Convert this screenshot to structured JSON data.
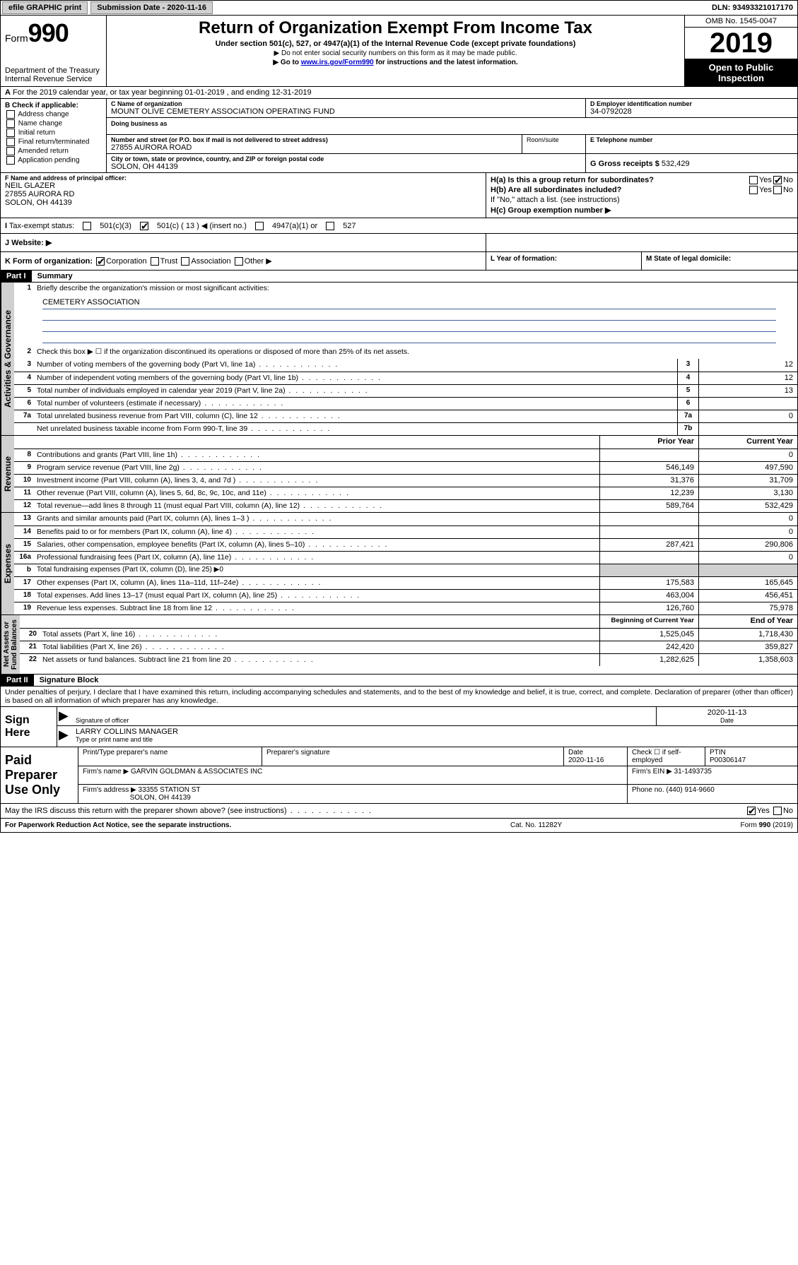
{
  "topbar": {
    "efile_btn": "efile GRAPHIC print",
    "submission_label": "Submission Date - 2020-11-16",
    "dln": "DLN: 93493321017170"
  },
  "header": {
    "form_label": "Form",
    "form_number": "990",
    "dept": "Department of the Treasury",
    "irs": "Internal Revenue Service",
    "title": "Return of Organization Exempt From Income Tax",
    "subtitle": "Under section 501(c), 527, or 4947(a)(1) of the Internal Revenue Code (except private foundations)",
    "note1": "▶ Do not enter social security numbers on this form as it may be made public.",
    "note2_pre": "▶ Go to ",
    "note2_link": "www.irs.gov/Form990",
    "note2_post": " for instructions and the latest information.",
    "omb": "OMB No. 1545-0047",
    "year": "2019",
    "open": "Open to Public Inspection"
  },
  "row_a": "For the 2019 calendar year, or tax year beginning 01-01-2019   , and ending 12-31-2019",
  "col_b": {
    "title": "B Check if applicable:",
    "items": [
      "Address change",
      "Name change",
      "Initial return",
      "Final return/terminated",
      "Amended return",
      "Application pending"
    ]
  },
  "col_c": {
    "name_lbl": "C Name of organization",
    "name": "MOUNT OLIVE CEMETERY ASSOCIATION OPERATING FUND",
    "dba_lbl": "Doing business as",
    "addr_lbl": "Number and street (or P.O. box if mail is not delivered to street address)",
    "addr": "27855 AURORA ROAD",
    "room_lbl": "Room/suite",
    "city_lbl": "City or town, state or province, country, and ZIP or foreign postal code",
    "city": "SOLON, OH  44139"
  },
  "col_d": {
    "ein_lbl": "D Employer identification number",
    "ein": "34-0792028"
  },
  "col_e": {
    "tel_lbl": "E Telephone number"
  },
  "col_g": {
    "gross_lbl": "G Gross receipts $",
    "gross": "532,429"
  },
  "col_f": {
    "lbl": "F  Name and address of principal officer:",
    "name": "NEIL GLAZER",
    "addr1": "27855 AURORA RD",
    "addr2": "SOLON, OH  44139"
  },
  "col_h": {
    "ha": "H(a)  Is this a group return for subordinates?",
    "hb": "H(b)  Are all subordinates included?",
    "hb_note": "If \"No,\" attach a list. (see instructions)",
    "hc": "H(c)  Group exemption number ▶",
    "yes": "Yes",
    "no": "No"
  },
  "tax_status": {
    "lbl": "Tax-exempt status:",
    "c3": "501(c)(3)",
    "c": "501(c) ( 13 ) ◀ (insert no.)",
    "a1": "4947(a)(1) or",
    "s527": "527"
  },
  "website_lbl": "J   Website: ▶",
  "row_k": "K Form of organization:",
  "k_opts": [
    "Corporation",
    "Trust",
    "Association",
    "Other ▶"
  ],
  "row_l": "L Year of formation:",
  "row_m": "M State of legal domicile:",
  "part1": {
    "hdr": "Part I",
    "title": "Summary",
    "q1": "Briefly describe the organization's mission or most significant activities:",
    "mission": "CEMETERY ASSOCIATION",
    "q2": "Check this box ▶ ☐  if the organization discontinued its operations or disposed of more than 25% of its net assets.",
    "lines_gov": [
      {
        "n": "3",
        "d": "Number of voting members of the governing body (Part VI, line 1a)",
        "box": "3",
        "v": "12"
      },
      {
        "n": "4",
        "d": "Number of independent voting members of the governing body (Part VI, line 1b)",
        "box": "4",
        "v": "12"
      },
      {
        "n": "5",
        "d": "Total number of individuals employed in calendar year 2019 (Part V, line 2a)",
        "box": "5",
        "v": "13"
      },
      {
        "n": "6",
        "d": "Total number of volunteers (estimate if necessary)",
        "box": "6",
        "v": ""
      },
      {
        "n": "7a",
        "d": "Total unrelated business revenue from Part VIII, column (C), line 12",
        "box": "7a",
        "v": "0"
      },
      {
        "n": "",
        "d": "Net unrelated business taxable income from Form 990-T, line 39",
        "box": "7b",
        "v": ""
      }
    ],
    "prior": "Prior Year",
    "current": "Current Year",
    "rev": [
      {
        "n": "8",
        "d": "Contributions and grants (Part VIII, line 1h)",
        "p": "",
        "c": "0"
      },
      {
        "n": "9",
        "d": "Program service revenue (Part VIII, line 2g)",
        "p": "546,149",
        "c": "497,590"
      },
      {
        "n": "10",
        "d": "Investment income (Part VIII, column (A), lines 3, 4, and 7d )",
        "p": "31,376",
        "c": "31,709"
      },
      {
        "n": "11",
        "d": "Other revenue (Part VIII, column (A), lines 5, 6d, 8c, 9c, 10c, and 11e)",
        "p": "12,239",
        "c": "3,130"
      },
      {
        "n": "12",
        "d": "Total revenue—add lines 8 through 11 (must equal Part VIII, column (A), line 12)",
        "p": "589,764",
        "c": "532,429"
      }
    ],
    "exp": [
      {
        "n": "13",
        "d": "Grants and similar amounts paid (Part IX, column (A), lines 1–3 )",
        "p": "",
        "c": "0"
      },
      {
        "n": "14",
        "d": "Benefits paid to or for members (Part IX, column (A), line 4)",
        "p": "",
        "c": "0"
      },
      {
        "n": "15",
        "d": "Salaries, other compensation, employee benefits (Part IX, column (A), lines 5–10)",
        "p": "287,421",
        "c": "290,806"
      },
      {
        "n": "16a",
        "d": "Professional fundraising fees (Part IX, column (A), line 11e)",
        "p": "",
        "c": "0"
      },
      {
        "n": "b",
        "d": "Total fundraising expenses (Part IX, column (D), line 25) ▶0",
        "p": null,
        "c": null
      },
      {
        "n": "17",
        "d": "Other expenses (Part IX, column (A), lines 11a–11d, 11f–24e)",
        "p": "175,583",
        "c": "165,645"
      },
      {
        "n": "18",
        "d": "Total expenses. Add lines 13–17 (must equal Part IX, column (A), line 25)",
        "p": "463,004",
        "c": "456,451"
      },
      {
        "n": "19",
        "d": "Revenue less expenses. Subtract line 18 from line 12",
        "p": "126,760",
        "c": "75,978"
      }
    ],
    "begin": "Beginning of Current Year",
    "end": "End of Year",
    "net": [
      {
        "n": "20",
        "d": "Total assets (Part X, line 16)",
        "p": "1,525,045",
        "c": "1,718,430"
      },
      {
        "n": "21",
        "d": "Total liabilities (Part X, line 26)",
        "p": "242,420",
        "c": "359,827"
      },
      {
        "n": "22",
        "d": "Net assets or fund balances. Subtract line 21 from line 20",
        "p": "1,282,625",
        "c": "1,358,603"
      }
    ]
  },
  "part2": {
    "hdr": "Part II",
    "title": "Signature Block",
    "decl": "Under penalties of perjury, I declare that I have examined this return, including accompanying schedules and statements, and to the best of my knowledge and belief, it is true, correct, and complete. Declaration of preparer (other than officer) is based on all information of which preparer has any knowledge."
  },
  "sign": {
    "here": "Sign Here",
    "sig_lbl": "Signature of officer",
    "date": "2020-11-13",
    "date_lbl": "Date",
    "name": "LARRY COLLINS MANAGER",
    "name_lbl": "Type or print name and title"
  },
  "preparer": {
    "title": "Paid Preparer Use Only",
    "h1": "Print/Type preparer's name",
    "h2": "Preparer's signature",
    "h3": "Date",
    "h3v": "2020-11-16",
    "h4": "Check ☐ if self-employed",
    "h5": "PTIN",
    "h5v": "P00306147",
    "firm_lbl": "Firm's name    ▶",
    "firm": "GARVIN GOLDMAN & ASSOCIATES INC",
    "ein_lbl": "Firm's EIN ▶",
    "ein": "31-1493735",
    "addr_lbl": "Firm's address ▶",
    "addr1": "33355 STATION ST",
    "addr2": "SOLON, OH  44139",
    "phone_lbl": "Phone no.",
    "phone": "(440) 914-9660"
  },
  "discuss": "May the IRS discuss this return with the preparer shown above? (see instructions)",
  "footer": {
    "l": "For Paperwork Reduction Act Notice, see the separate instructions.",
    "m": "Cat. No. 11282Y",
    "r": "Form 990 (2019)"
  }
}
